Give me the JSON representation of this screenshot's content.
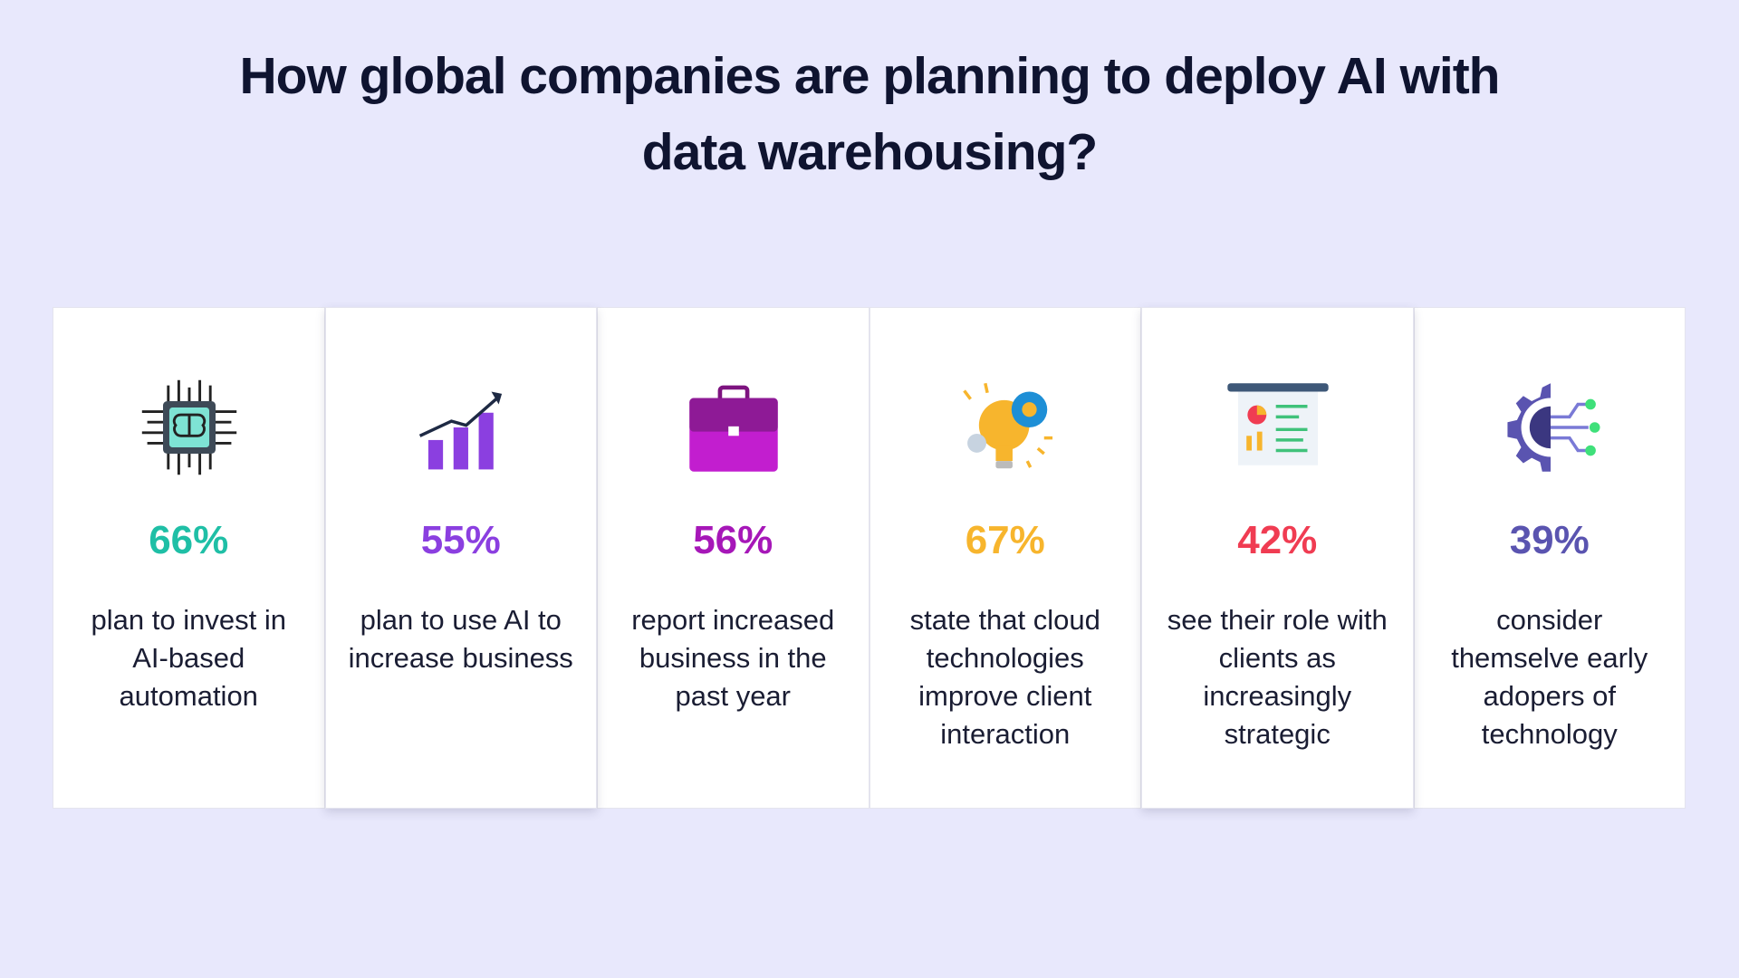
{
  "header": {
    "title": "How global companies are planning to deploy AI with data warehousing?"
  },
  "cards": [
    {
      "stat": "66%",
      "text": "plan to invest in AI-based automation"
    },
    {
      "stat": "55%",
      "text": "plan to use AI to increase business"
    },
    {
      "stat": "56%",
      "text": "report increased business in the past year"
    },
    {
      "stat": "67%",
      "text": "state that cloud technologies improve client interaction"
    },
    {
      "stat": "42%",
      "text": "see their role with clients as increasingly strategic"
    },
    {
      "stat": "39%",
      "text": "consider themselve early adopers of technology"
    }
  ]
}
